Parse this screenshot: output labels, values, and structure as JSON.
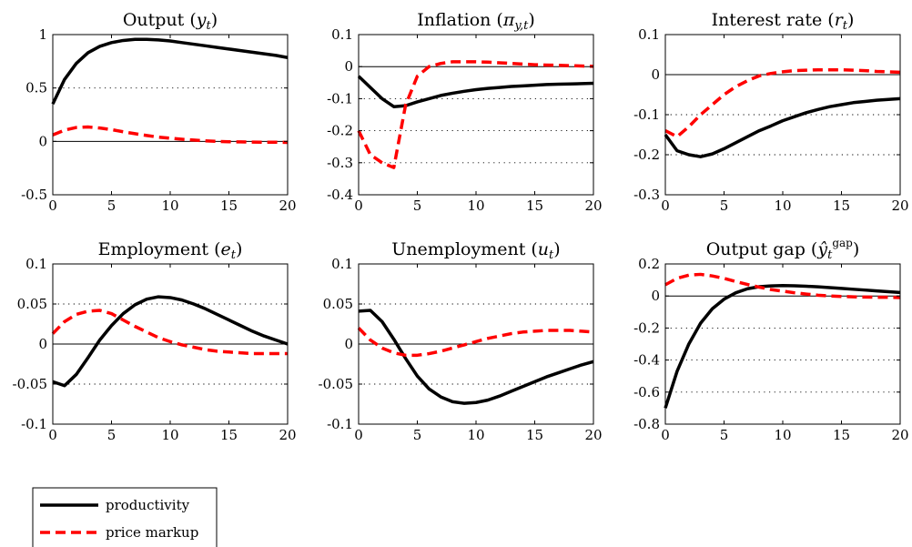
{
  "legend": [
    {
      "label": "productivity",
      "color": "#000000",
      "dash": "solid"
    },
    {
      "label": "price markup",
      "color": "#ff0000",
      "dash": "dashed"
    }
  ],
  "chart_data": [
    {
      "type": "line",
      "title": "Output (y_t)",
      "title_parts": [
        "Output (",
        "y",
        "t",
        ")"
      ],
      "xlim": [
        0,
        20
      ],
      "ylim": [
        -0.5,
        1
      ],
      "xticks": [
        0,
        5,
        10,
        15,
        20
      ],
      "xtick_labels": [
        "0",
        "5",
        "10",
        "15",
        "20"
      ],
      "yticks": [
        -0.5,
        0,
        0.5,
        1
      ],
      "ytick_labels": [
        "-0.5",
        "0",
        "0.5",
        "1"
      ],
      "grid_y": [
        0.5
      ],
      "zero_line": 0,
      "series": [
        {
          "name": "productivity",
          "x": [
            0,
            1,
            2,
            3,
            4,
            5,
            6,
            7,
            8,
            9,
            10,
            11,
            12,
            13,
            14,
            15,
            16,
            17,
            18,
            19,
            20
          ],
          "y": [
            0.35,
            0.58,
            0.73,
            0.83,
            0.89,
            0.925,
            0.945,
            0.955,
            0.955,
            0.95,
            0.94,
            0.925,
            0.91,
            0.895,
            0.88,
            0.865,
            0.85,
            0.835,
            0.82,
            0.805,
            0.785
          ]
        },
        {
          "name": "price markup",
          "x": [
            0,
            1,
            2,
            3,
            4,
            5,
            6,
            7,
            8,
            9,
            10,
            11,
            12,
            13,
            14,
            15,
            16,
            17,
            18,
            19,
            20
          ],
          "y": [
            0.06,
            0.105,
            0.13,
            0.135,
            0.125,
            0.11,
            0.09,
            0.072,
            0.055,
            0.04,
            0.03,
            0.02,
            0.012,
            0.005,
            0.0,
            -0.003,
            -0.005,
            -0.007,
            -0.008,
            -0.008,
            -0.01
          ]
        }
      ]
    },
    {
      "type": "line",
      "title": "Inflation (π_y,t)",
      "title_parts": [
        "Inflation (",
        "π",
        "y,t",
        ")"
      ],
      "xlim": [
        0,
        20
      ],
      "ylim": [
        -0.4,
        0.1
      ],
      "xticks": [
        0,
        5,
        10,
        15,
        20
      ],
      "xtick_labels": [
        "0",
        "5",
        "10",
        "15",
        "20"
      ],
      "yticks": [
        -0.4,
        -0.3,
        -0.2,
        -0.1,
        0,
        0.1
      ],
      "ytick_labels": [
        "-0.4",
        "-0.3",
        "-0.2",
        "-0.1",
        "0",
        "0.1"
      ],
      "grid_y": [
        -0.1,
        -0.2,
        -0.3
      ],
      "zero_line": 0,
      "series": [
        {
          "name": "productivity",
          "x": [
            0,
            1,
            2,
            3,
            4,
            5,
            6,
            7,
            8,
            9,
            10,
            11,
            12,
            13,
            14,
            15,
            16,
            17,
            18,
            19,
            20
          ],
          "y": [
            -0.03,
            -0.065,
            -0.1,
            -0.125,
            -0.122,
            -0.11,
            -0.1,
            -0.09,
            -0.083,
            -0.077,
            -0.072,
            -0.068,
            -0.065,
            -0.062,
            -0.06,
            -0.058,
            -0.056,
            -0.055,
            -0.054,
            -0.053,
            -0.052
          ]
        },
        {
          "name": "price markup",
          "x": [
            0,
            1,
            2,
            3,
            4,
            5,
            6,
            7,
            8,
            9,
            10,
            11,
            12,
            13,
            14,
            15,
            16,
            17,
            18,
            19,
            20
          ],
          "y": [
            -0.2,
            -0.275,
            -0.3,
            -0.315,
            -0.12,
            -0.03,
            0.0,
            0.01,
            0.015,
            0.015,
            0.015,
            0.014,
            0.012,
            0.01,
            0.008,
            0.006,
            0.005,
            0.004,
            0.003,
            0.002,
            0.001
          ]
        }
      ]
    },
    {
      "type": "line",
      "title": "Interest rate (r_t)",
      "title_parts": [
        "Interest rate (",
        "r",
        "t",
        ")"
      ],
      "xlim": [
        0,
        20
      ],
      "ylim": [
        -0.3,
        0.1
      ],
      "xticks": [
        0,
        5,
        10,
        15,
        20
      ],
      "xtick_labels": [
        "0",
        "5",
        "10",
        "15",
        "20"
      ],
      "yticks": [
        -0.3,
        -0.2,
        -0.1,
        0,
        0.1
      ],
      "ytick_labels": [
        "-0.3",
        "-0.2",
        "-0.1",
        "0",
        "0.1"
      ],
      "grid_y": [
        -0.1,
        -0.2
      ],
      "zero_line": 0,
      "series": [
        {
          "name": "productivity",
          "x": [
            0,
            1,
            2,
            3,
            4,
            5,
            6,
            7,
            8,
            9,
            10,
            11,
            12,
            13,
            14,
            15,
            16,
            17,
            18,
            19,
            20
          ],
          "y": [
            -0.15,
            -0.19,
            -0.2,
            -0.205,
            -0.198,
            -0.185,
            -0.17,
            -0.155,
            -0.14,
            -0.128,
            -0.115,
            -0.105,
            -0.095,
            -0.087,
            -0.08,
            -0.075,
            -0.07,
            -0.067,
            -0.064,
            -0.062,
            -0.06
          ]
        },
        {
          "name": "price markup",
          "x": [
            0,
            1,
            2,
            3,
            4,
            5,
            6,
            7,
            8,
            9,
            10,
            11,
            12,
            13,
            14,
            15,
            16,
            17,
            18,
            19,
            20
          ],
          "y": [
            -0.14,
            -0.155,
            -0.13,
            -0.1,
            -0.075,
            -0.05,
            -0.03,
            -0.015,
            -0.003,
            0.003,
            0.007,
            0.01,
            0.011,
            0.012,
            0.012,
            0.012,
            0.011,
            0.01,
            0.008,
            0.007,
            0.006
          ]
        }
      ]
    },
    {
      "type": "line",
      "title": "Employment (e_t)",
      "title_parts": [
        "Employment (",
        "e",
        "t",
        ")"
      ],
      "xlim": [
        0,
        20
      ],
      "ylim": [
        -0.1,
        0.1
      ],
      "xticks": [
        0,
        5,
        10,
        15,
        20
      ],
      "xtick_labels": [
        "0",
        "5",
        "10",
        "15",
        "20"
      ],
      "yticks": [
        -0.1,
        -0.05,
        0,
        0.05,
        0.1
      ],
      "ytick_labels": [
        "-0.1",
        "-0.05",
        "0",
        "0.05",
        "0.1"
      ],
      "grid_y": [
        0.05,
        -0.05
      ],
      "zero_line": 0,
      "series": [
        {
          "name": "productivity",
          "x": [
            0,
            1,
            2,
            3,
            4,
            5,
            6,
            7,
            8,
            9,
            10,
            11,
            12,
            13,
            14,
            15,
            16,
            17,
            18,
            19,
            20
          ],
          "y": [
            -0.047,
            -0.052,
            -0.038,
            -0.017,
            0.005,
            0.023,
            0.038,
            0.049,
            0.056,
            0.059,
            0.058,
            0.055,
            0.05,
            0.044,
            0.037,
            0.03,
            0.023,
            0.016,
            0.01,
            0.005,
            0.0
          ]
        },
        {
          "name": "price markup",
          "x": [
            0,
            1,
            2,
            3,
            4,
            5,
            6,
            7,
            8,
            9,
            10,
            11,
            12,
            13,
            14,
            15,
            16,
            17,
            18,
            19,
            20
          ],
          "y": [
            0.013,
            0.028,
            0.037,
            0.041,
            0.042,
            0.038,
            0.03,
            0.022,
            0.015,
            0.008,
            0.003,
            -0.001,
            -0.004,
            -0.007,
            -0.009,
            -0.01,
            -0.011,
            -0.012,
            -0.012,
            -0.012,
            -0.012
          ]
        }
      ]
    },
    {
      "type": "line",
      "title": "Unemployment (u_t)",
      "title_parts": [
        "Unemployment (",
        "u",
        "t",
        ")"
      ],
      "xlim": [
        0,
        20
      ],
      "ylim": [
        -0.1,
        0.1
      ],
      "xticks": [
        0,
        5,
        10,
        15,
        20
      ],
      "xtick_labels": [
        "0",
        "5",
        "10",
        "15",
        "20"
      ],
      "yticks": [
        -0.1,
        -0.05,
        0,
        0.05,
        0.1
      ],
      "ytick_labels": [
        "-0.1",
        "-0.05",
        "0",
        "0.05",
        "0.1"
      ],
      "grid_y": [
        0.05,
        -0.05
      ],
      "zero_line": 0,
      "series": [
        {
          "name": "productivity",
          "x": [
            0,
            1,
            2,
            3,
            4,
            5,
            6,
            7,
            8,
            9,
            10,
            11,
            12,
            13,
            14,
            15,
            16,
            17,
            18,
            19,
            20
          ],
          "y": [
            0.041,
            0.042,
            0.028,
            0.006,
            -0.018,
            -0.04,
            -0.056,
            -0.066,
            -0.072,
            -0.074,
            -0.073,
            -0.07,
            -0.065,
            -0.059,
            -0.053,
            -0.047,
            -0.041,
            -0.036,
            -0.031,
            -0.026,
            -0.022
          ]
        },
        {
          "name": "price markup",
          "x": [
            0,
            1,
            2,
            3,
            4,
            5,
            6,
            7,
            8,
            9,
            10,
            11,
            12,
            13,
            14,
            15,
            16,
            17,
            18,
            19,
            20
          ],
          "y": [
            0.02,
            0.005,
            -0.005,
            -0.011,
            -0.014,
            -0.014,
            -0.012,
            -0.009,
            -0.005,
            -0.001,
            0.003,
            0.007,
            0.01,
            0.013,
            0.015,
            0.016,
            0.017,
            0.017,
            0.017,
            0.016,
            0.015
          ]
        }
      ]
    },
    {
      "type": "line",
      "title": "Output gap (ŷ_t^gap)",
      "title_parts": [
        "Output gap (",
        "ŷ",
        "t",
        "gap",
        ")"
      ],
      "xlim": [
        0,
        20
      ],
      "ylim": [
        -0.8,
        0.2
      ],
      "xticks": [
        0,
        5,
        10,
        15,
        20
      ],
      "xtick_labels": [
        "0",
        "5",
        "10",
        "15",
        "20"
      ],
      "yticks": [
        -0.8,
        -0.6,
        -0.4,
        -0.2,
        0,
        0.2
      ],
      "ytick_labels": [
        "-0.8",
        "-0.6",
        "-0.4",
        "-0.2",
        "0",
        "0.2"
      ],
      "grid_y": [
        0.2,
        -0.2,
        -0.4,
        -0.6
      ],
      "zero_line": 0,
      "series": [
        {
          "name": "productivity",
          "x": [
            0,
            1,
            2,
            3,
            4,
            5,
            6,
            7,
            8,
            9,
            10,
            11,
            12,
            13,
            14,
            15,
            16,
            17,
            18,
            19,
            20
          ],
          "y": [
            -0.7,
            -0.47,
            -0.3,
            -0.17,
            -0.08,
            -0.02,
            0.02,
            0.045,
            0.058,
            0.063,
            0.065,
            0.064,
            0.061,
            0.057,
            0.052,
            0.047,
            0.042,
            0.037,
            0.032,
            0.027,
            0.022
          ]
        },
        {
          "name": "price markup",
          "x": [
            0,
            1,
            2,
            3,
            4,
            5,
            6,
            7,
            8,
            9,
            10,
            11,
            12,
            13,
            14,
            15,
            16,
            17,
            18,
            19,
            20
          ],
          "y": [
            0.07,
            0.11,
            0.13,
            0.135,
            0.125,
            0.11,
            0.09,
            0.072,
            0.055,
            0.04,
            0.03,
            0.02,
            0.012,
            0.005,
            0.0,
            -0.003,
            -0.005,
            -0.007,
            -0.008,
            -0.008,
            -0.01
          ]
        }
      ]
    }
  ]
}
